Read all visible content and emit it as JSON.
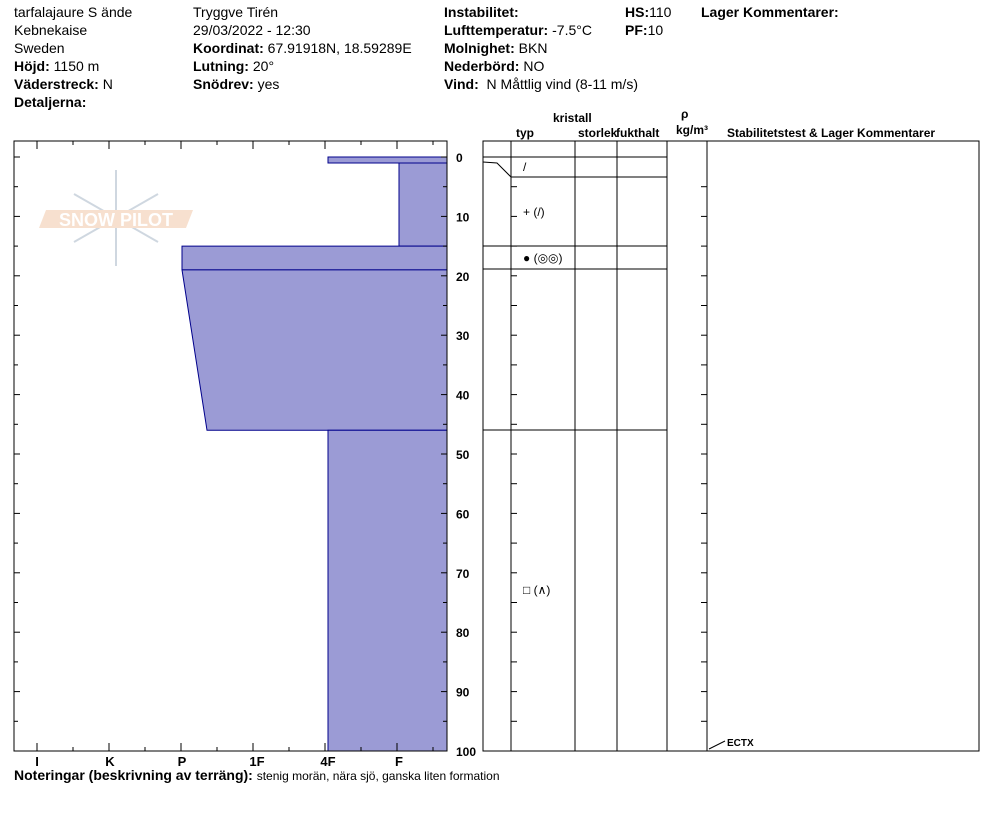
{
  "header": {
    "col1": {
      "location": "tarfalajaure S ände",
      "area": "Kebnekaise",
      "country": "Sweden",
      "elevation_label": "Höjd:",
      "elevation": "1150 m",
      "aspect_label": "Väderstreck:",
      "aspect": "N",
      "details_label": "Detaljerna:"
    },
    "col2": {
      "observer": "Tryggve  Tirén",
      "datetime": "29/03/2022 - 12:30",
      "coord_label": "Koordinat:",
      "coord": "67.91918N, 18.59289E",
      "slope_label": "Lutning:",
      "slope": "20°",
      "drift_label": "Snödrev:",
      "drift": "yes"
    },
    "col3": {
      "instability_label": "Instabilitet:",
      "airtemp_label": "Lufttemperatur:",
      "airtemp": "-7.5°C",
      "sky_label": "Molnighet:",
      "sky": "BKN",
      "precip_label": "Nederbörd:",
      "precip": "NO",
      "wind_label": "Vind:",
      "wind": "N Måttlig vind (8-11 m/s)"
    },
    "col4": {
      "hs_label": "HS:",
      "hs": "110",
      "pf_label": "PF:",
      "pf": "10"
    },
    "col5": {
      "layer_comments_label": "Lager Kommentarer:"
    }
  },
  "table_headers": {
    "crystal": "kristall",
    "type": "typ",
    "size": "storlek",
    "moisture": "fukthalt",
    "rho": "ρ",
    "density_unit": "kg/m³",
    "stability": "Stabilitetstest & Lager Kommentarer"
  },
  "notes": {
    "label": "Noteringar (beskrivning av terräng):",
    "text": "stenig morän, nära sjö, ganska liten formation"
  },
  "colors": {
    "layer_fill": "#9b9bd5",
    "layer_stroke": "#00008b"
  },
  "chart_data": {
    "type": "snow-profile",
    "y_axis": {
      "label": "",
      "range": [
        0,
        100
      ],
      "ticks": [
        "0",
        "10",
        "20",
        "30",
        "40",
        "50",
        "60",
        "70",
        "80",
        "90",
        "100"
      ],
      "direction": "down"
    },
    "x_axis": {
      "ticks": [
        "I",
        "K",
        "P",
        "1F",
        "4F",
        "F"
      ]
    },
    "layers": [
      {
        "top": 0,
        "bottom": 1,
        "hardness_top": "4F",
        "hardness_bottom": "4F",
        "grain": "/"
      },
      {
        "top": 1,
        "bottom": 15,
        "hardness_top": "F",
        "hardness_bottom": "F",
        "grain": "+ (/)"
      },
      {
        "top": 15,
        "bottom": 19,
        "hardness_top": "P",
        "hardness_bottom": "P",
        "grain": "● (◎◎)"
      },
      {
        "top": 19,
        "bottom": 46,
        "hardness_top": "P",
        "hardness_bottom": "P+",
        "grain": ""
      },
      {
        "top": 46,
        "bottom": 100,
        "hardness_top": "4F",
        "hardness_bottom": "4F",
        "grain": "□ (∧)"
      }
    ],
    "tests": [
      {
        "depth": 100,
        "label": "ECTX"
      }
    ]
  }
}
